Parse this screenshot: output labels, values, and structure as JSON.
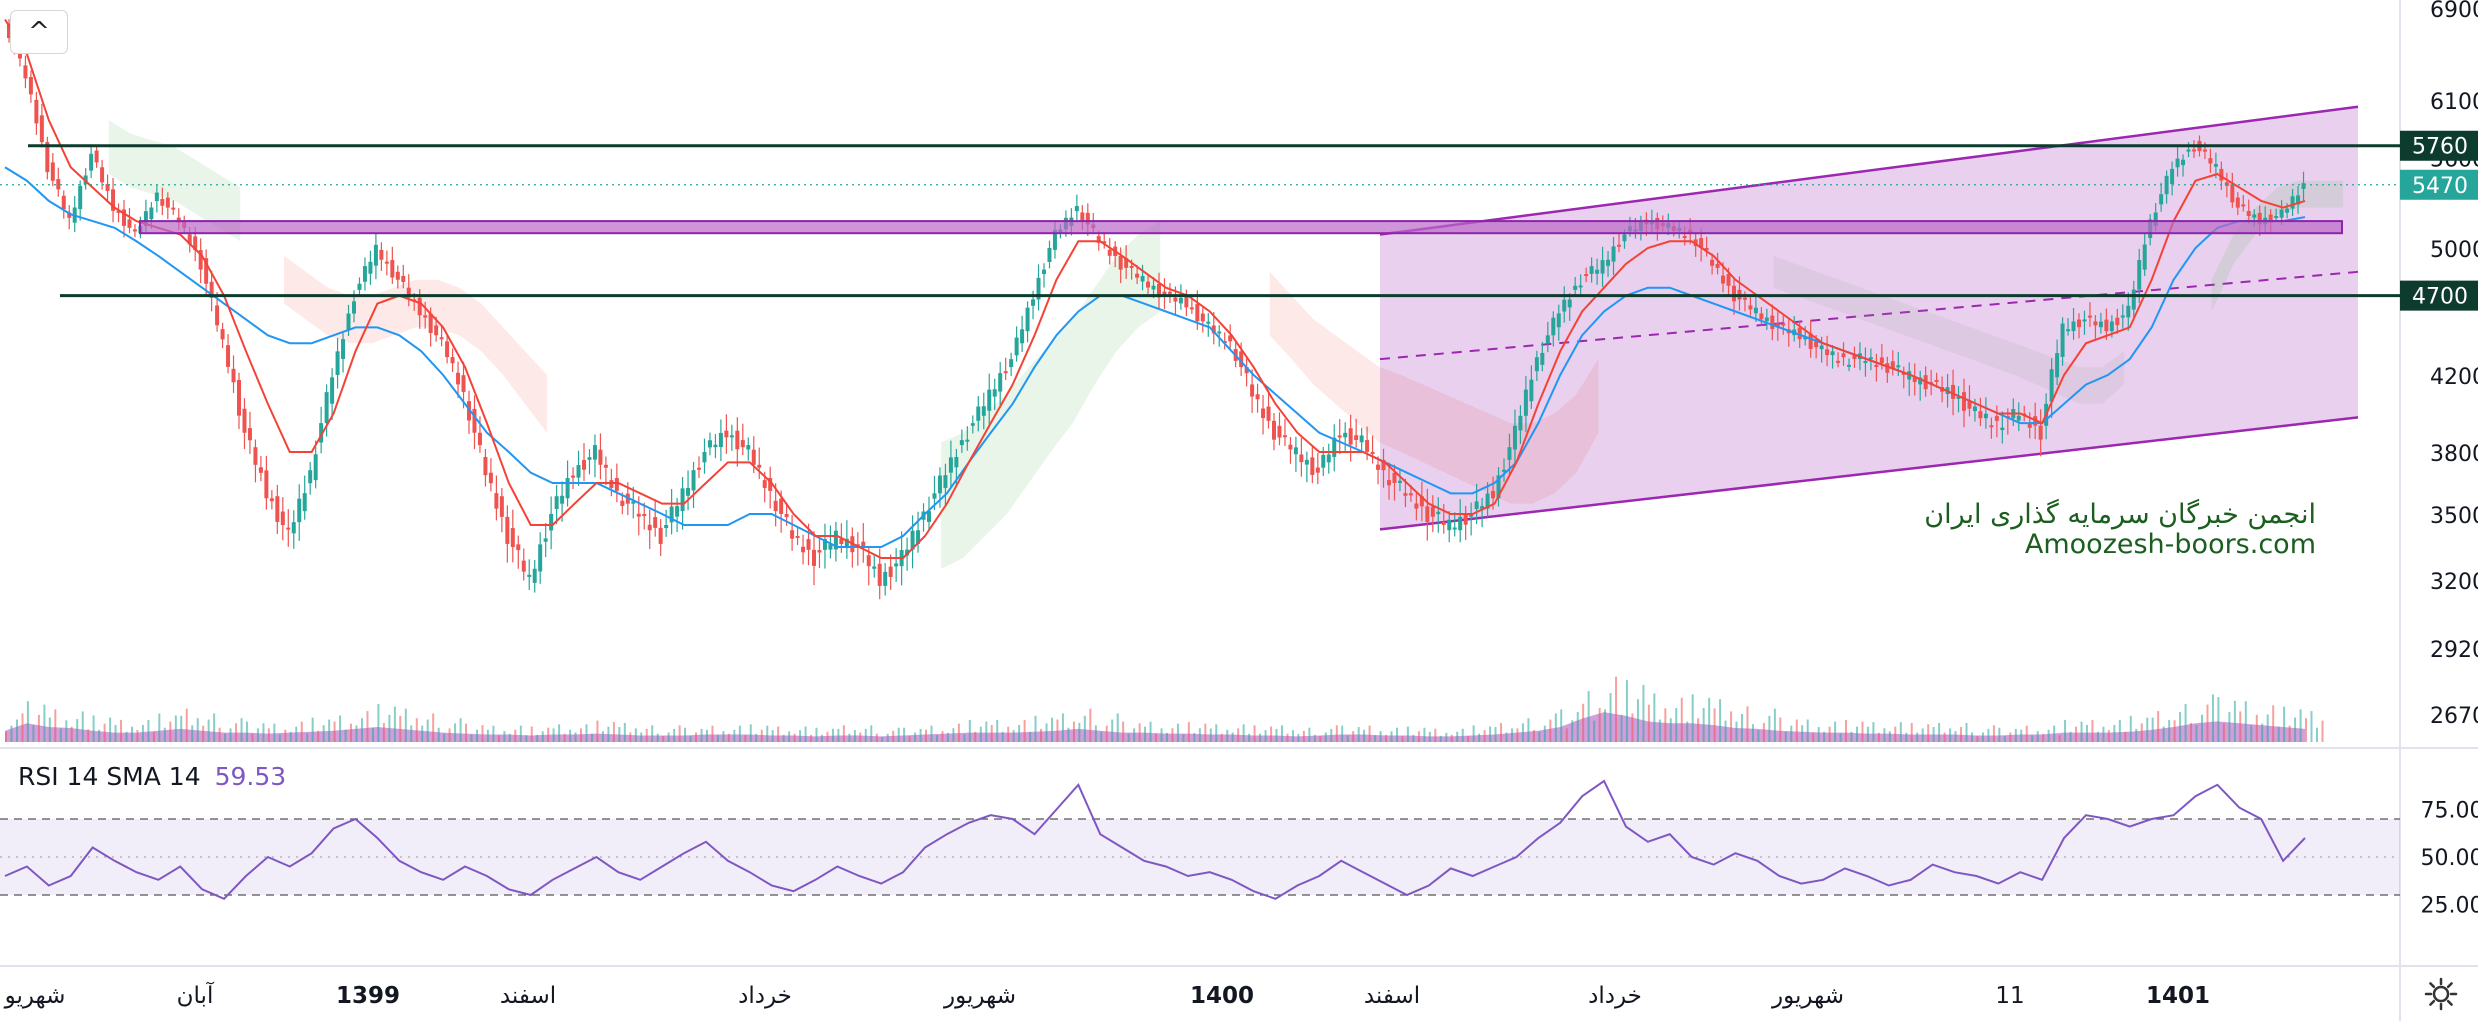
{
  "chart_data": {
    "type": "candlestick",
    "title": "",
    "price_axis": {
      "ticks": [
        6900,
        6100,
        5000,
        4200,
        3800,
        3500,
        3200,
        2920,
        2670
      ],
      "partial_ticks": [
        "4600",
        "5600"
      ],
      "ylim": [
        2500,
        6900
      ]
    },
    "x_axis": {
      "labels": [
        "شهریو",
        "آبان",
        "1399",
        "اسفند",
        "خرداد",
        "شهریور",
        "1400",
        "اسفند",
        "خرداد",
        "شهریور",
        "11",
        "1401"
      ],
      "bold_labels": [
        "1399",
        "1400",
        "1401"
      ]
    },
    "price_labels": [
      {
        "value": 5760,
        "text": "5760",
        "color": "#0d3b2e"
      },
      {
        "value": 5470,
        "text": "5470",
        "color": "#26a69a"
      },
      {
        "value": 4700,
        "text": "4700",
        "color": "#0d3b2e"
      }
    ],
    "horizontal_levels": [
      {
        "value": 5760,
        "style": "solid",
        "color": "#0d3b2e"
      },
      {
        "value": 4700,
        "style": "solid",
        "color": "#0d3b2e"
      }
    ],
    "resistance_zone": {
      "from": 5110,
      "to": 5200,
      "color": "#ba68c8"
    },
    "channel": {
      "upper_start": 5100,
      "upper_end": 6050,
      "lower_start": 3430,
      "lower_end": 3980,
      "mid_start": 4300,
      "mid_end": 4850,
      "color": "#9c27b0"
    },
    "price_series": [
      6800,
      6300,
      5600,
      5200,
      5700,
      5300,
      5100,
      5400,
      5200,
      4900,
      4400,
      3900,
      3600,
      3400,
      3700,
      4200,
      4700,
      5000,
      4800,
      4600,
      4400,
      4100,
      3700,
      3400,
      3200,
      3500,
      3700,
      3800,
      3600,
      3500,
      3400,
      3600,
      3800,
      3900,
      3800,
      3600,
      3400,
      3300,
      3400,
      3350,
      3200,
      3300,
      3500,
      3700,
      3900,
      4100,
      4300,
      4700,
      5100,
      5300,
      5050,
      4900,
      4800,
      4700,
      4650,
      4500,
      4400,
      4100,
      3900,
      3800,
      3700,
      3900,
      3850,
      3700,
      3600,
      3500,
      3450,
      3500,
      3600,
      3900,
      4300,
      4600,
      4800,
      4900,
      5100,
      5200,
      5150,
      5100,
      4900,
      4700,
      4600,
      4500,
      4450,
      4350,
      4300,
      4300,
      4250,
      4200,
      4150,
      4100,
      4000,
      3950,
      4000,
      3900,
      4500,
      4550,
      4500,
      4600,
      5200,
      5600,
      5760,
      5600,
      5300,
      5200,
      5250,
      5470
    ],
    "ma_red": [
      6800,
      6500,
      5950,
      5600,
      5450,
      5300,
      5200,
      5150,
      5100,
      4950,
      4700,
      4350,
      4050,
      3800,
      3800,
      4000,
      4350,
      4650,
      4700,
      4650,
      4500,
      4250,
      3950,
      3650,
      3450,
      3450,
      3550,
      3650,
      3650,
      3600,
      3550,
      3550,
      3650,
      3750,
      3750,
      3650,
      3500,
      3400,
      3400,
      3350,
      3300,
      3300,
      3400,
      3550,
      3750,
      3950,
      4150,
      4450,
      4800,
      5050,
      5050,
      4950,
      4850,
      4750,
      4700,
      4600,
      4450,
      4250,
      4050,
      3900,
      3800,
      3800,
      3800,
      3750,
      3650,
      3550,
      3500,
      3500,
      3550,
      3750,
      4050,
      4350,
      4600,
      4750,
      4900,
      5000,
      5050,
      5050,
      4950,
      4800,
      4700,
      4600,
      4500,
      4400,
      4350,
      4300,
      4250,
      4200,
      4150,
      4100,
      4050,
      4000,
      4000,
      3950,
      4200,
      4400,
      4450,
      4500,
      4800,
      5200,
      5500,
      5550,
      5450,
      5350,
      5300,
      5350
    ],
    "ma_blue": [
      5600,
      5500,
      5350,
      5250,
      5200,
      5150,
      5050,
      4950,
      4850,
      4750,
      4650,
      4550,
      4450,
      4400,
      4400,
      4450,
      4500,
      4500,
      4450,
      4350,
      4200,
      4050,
      3900,
      3800,
      3700,
      3650,
      3650,
      3650,
      3600,
      3550,
      3500,
      3450,
      3450,
      3450,
      3500,
      3500,
      3450,
      3400,
      3350,
      3350,
      3350,
      3400,
      3500,
      3600,
      3750,
      3900,
      4050,
      4250,
      4450,
      4600,
      4700,
      4700,
      4650,
      4600,
      4550,
      4500,
      4350,
      4200,
      4100,
      4000,
      3900,
      3850,
      3800,
      3750,
      3700,
      3650,
      3600,
      3600,
      3650,
      3750,
      3950,
      4200,
      4450,
      4600,
      4700,
      4750,
      4750,
      4700,
      4650,
      4600,
      4550,
      4500,
      4450,
      4400,
      4350,
      4300,
      4250,
      4200,
      4150,
      4100,
      4050,
      4000,
      3950,
      3950,
      4050,
      4150,
      4200,
      4300,
      4500,
      4800,
      5000,
      5150,
      5200,
      5200,
      5200,
      5230
    ],
    "volume": [
      0.12,
      0.2,
      0.16,
      0.15,
      0.12,
      0.1,
      0.1,
      0.12,
      0.14,
      0.12,
      0.1,
      0.1,
      0.09,
      0.1,
      0.11,
      0.12,
      0.14,
      0.16,
      0.14,
      0.12,
      0.1,
      0.09,
      0.08,
      0.08,
      0.07,
      0.08,
      0.08,
      0.09,
      0.08,
      0.07,
      0.07,
      0.07,
      0.08,
      0.08,
      0.08,
      0.07,
      0.07,
      0.06,
      0.07,
      0.07,
      0.06,
      0.07,
      0.08,
      0.09,
      0.1,
      0.1,
      0.1,
      0.11,
      0.12,
      0.14,
      0.12,
      0.1,
      0.1,
      0.09,
      0.09,
      0.08,
      0.08,
      0.07,
      0.07,
      0.06,
      0.07,
      0.08,
      0.08,
      0.07,
      0.07,
      0.06,
      0.06,
      0.07,
      0.08,
      0.1,
      0.12,
      0.16,
      0.25,
      0.32,
      0.28,
      0.22,
      0.2,
      0.2,
      0.18,
      0.15,
      0.14,
      0.12,
      0.11,
      0.1,
      0.1,
      0.09,
      0.09,
      0.08,
      0.08,
      0.08,
      0.07,
      0.07,
      0.08,
      0.08,
      0.1,
      0.1,
      0.1,
      0.11,
      0.13,
      0.16,
      0.2,
      0.22,
      0.2,
      0.18,
      0.16,
      0.14
    ]
  },
  "rsi": {
    "legend_label": "RSI 14 SMA 14",
    "legend_value": "59.53",
    "ticks": [
      "75.00",
      "50.00",
      "25.00"
    ],
    "values": [
      40,
      45,
      35,
      40,
      55,
      48,
      42,
      38,
      45,
      33,
      28,
      40,
      50,
      45,
      52,
      65,
      70,
      60,
      48,
      42,
      38,
      45,
      40,
      33,
      30,
      38,
      44,
      50,
      42,
      38,
      45,
      52,
      58,
      48,
      42,
      35,
      32,
      38,
      45,
      40,
      36,
      42,
      55,
      62,
      68,
      72,
      70,
      62,
      75,
      88,
      62,
      55,
      48,
      45,
      40,
      42,
      38,
      32,
      28,
      35,
      40,
      48,
      42,
      36,
      30,
      35,
      44,
      40,
      45,
      50,
      60,
      68,
      82,
      90,
      66,
      58,
      62,
      50,
      46,
      52,
      48,
      40,
      36,
      38,
      44,
      40,
      35,
      38,
      46,
      42,
      40,
      36,
      42,
      38,
      60,
      72,
      70,
      66,
      70,
      72,
      82,
      88,
      76,
      70,
      48,
      60
    ],
    "color": "#7e57c2"
  },
  "watermark": {
    "line1": "انجمن خبرگان سرمایه گذاری ایران",
    "line2": "Amoozesh-boors.com"
  },
  "icons": {
    "collapse": "chevron-up-icon",
    "settings": "gear-icon"
  },
  "collapse_glyph": "^"
}
